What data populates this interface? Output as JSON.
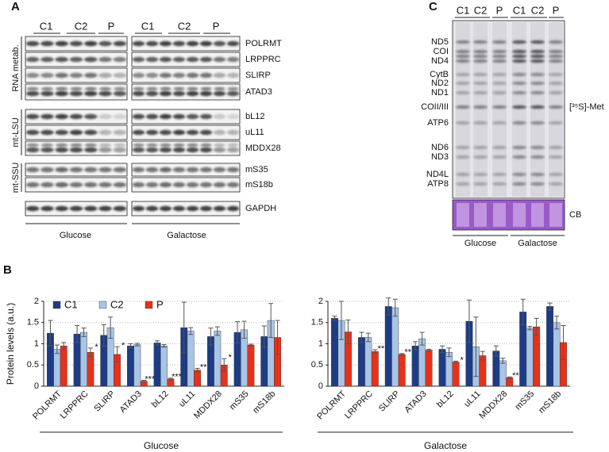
{
  "panel_a": {
    "label": "A",
    "columns": [
      "C1",
      "C2",
      "P",
      "C1",
      "C2",
      "P"
    ],
    "rows": [
      "POLRMT",
      "LRPPRC",
      "SLIRP",
      "ATAD3",
      "bL12",
      "uL11",
      "MDDX28",
      "mS35",
      "mS18b",
      "GAPDH"
    ],
    "groups": [
      "RNA metab.",
      "mt-LSU",
      "mt-SSU"
    ],
    "conditions": [
      "Glucose",
      "Galactose"
    ]
  },
  "panel_c": {
    "label": "C",
    "lanes": [
      "C1",
      "C2",
      "P",
      "C1",
      "C2",
      "P"
    ],
    "bands": [
      "ND5",
      "COI",
      "ND4",
      "CytB",
      "ND2",
      "ND1",
      "COII/III",
      "ATP6",
      "ND6",
      "ND3",
      "ND4L",
      "ATP8"
    ],
    "radiolabel": "[³⁵S]-Met",
    "stain": "CB",
    "conditions": [
      "Glucose",
      "Galactose"
    ]
  },
  "panel_b": {
    "label": "B"
  },
  "chart_data": [
    {
      "type": "bar",
      "ylabel": "Protein levels (a.u.)",
      "xlabel": "Glucose",
      "legend": "top-left",
      "grid": true,
      "categories": [
        "POLRMT",
        "LRPPRC",
        "SLIRP",
        "ATAD3",
        "bL12",
        "uL11",
        "MDDX28",
        "mS35",
        "mS18b"
      ],
      "ylim": [
        0,
        2
      ],
      "yticks": [
        0,
        0.5,
        1,
        1.5,
        2
      ],
      "series": [
        {
          "name": "C1",
          "color": "#1d3c86",
          "values": [
            1.25,
            1.23,
            1.2,
            0.95,
            1.02,
            1.38,
            1.17,
            1.27,
            1.17
          ],
          "errors": [
            0.3,
            0.2,
            0.25,
            0.05,
            0.05,
            0.6,
            0.2,
            0.25,
            0.25
          ]
        },
        {
          "name": "C2",
          "color": "#a9c4e4",
          "values": [
            0.87,
            1.27,
            1.38,
            0.98,
            0.95,
            1.3,
            1.3,
            1.33,
            1.55
          ],
          "errors": [
            0.1,
            0.1,
            0.25,
            0.03,
            0.03,
            0.08,
            0.1,
            0.2,
            0.4
          ]
        },
        {
          "name": "P",
          "color": "#e8311a",
          "values": [
            0.95,
            0.8,
            0.75,
            0.12,
            0.17,
            0.38,
            0.5,
            0.97,
            1.15
          ],
          "errors": [
            0.08,
            0.1,
            0.18,
            0.02,
            0.02,
            0.04,
            0.15,
            0.02,
            0.4
          ]
        }
      ],
      "significance": [
        null,
        "*",
        "*",
        "***",
        "***",
        "**",
        "*",
        null,
        null
      ]
    },
    {
      "type": "bar",
      "xlabel": "Galactose",
      "grid": true,
      "categories": [
        "POLRMT",
        "LRPPRC",
        "SLIRP",
        "ATAD3",
        "bL12",
        "uL11",
        "MDDX28",
        "mS35",
        "mS18b"
      ],
      "ylim": [
        0,
        2
      ],
      "yticks": [
        0,
        0.5,
        1,
        1.5,
        2
      ],
      "series": [
        {
          "color": "#1d3c86",
          "values": [
            1.6,
            1.15,
            1.88,
            0.95,
            0.87,
            1.53,
            0.83,
            1.75,
            1.88
          ],
          "errors": [
            0.05,
            0.12,
            0.2,
            0.1,
            0.08,
            0.5,
            0.12,
            0.3,
            0.08
          ]
        },
        {
          "color": "#a9c4e4",
          "values": [
            1.55,
            1.15,
            1.85,
            1.12,
            0.8,
            0.93,
            0.6,
            1.37,
            1.5
          ],
          "errors": [
            0.45,
            0.1,
            0.2,
            0.15,
            0.1,
            0.7,
            0.06,
            0.04,
            0.15
          ]
        },
        {
          "color": "#e8311a",
          "values": [
            1.28,
            0.82,
            0.75,
            0.85,
            0.57,
            0.72,
            0.2,
            1.4,
            1.03
          ],
          "errors": [
            0.28,
            0.04,
            0.02,
            0.02,
            0.02,
            0.1,
            0.02,
            0.2,
            0.4
          ]
        }
      ],
      "significance": [
        null,
        "**",
        "**",
        null,
        "*",
        null,
        "**",
        null,
        null
      ]
    }
  ]
}
